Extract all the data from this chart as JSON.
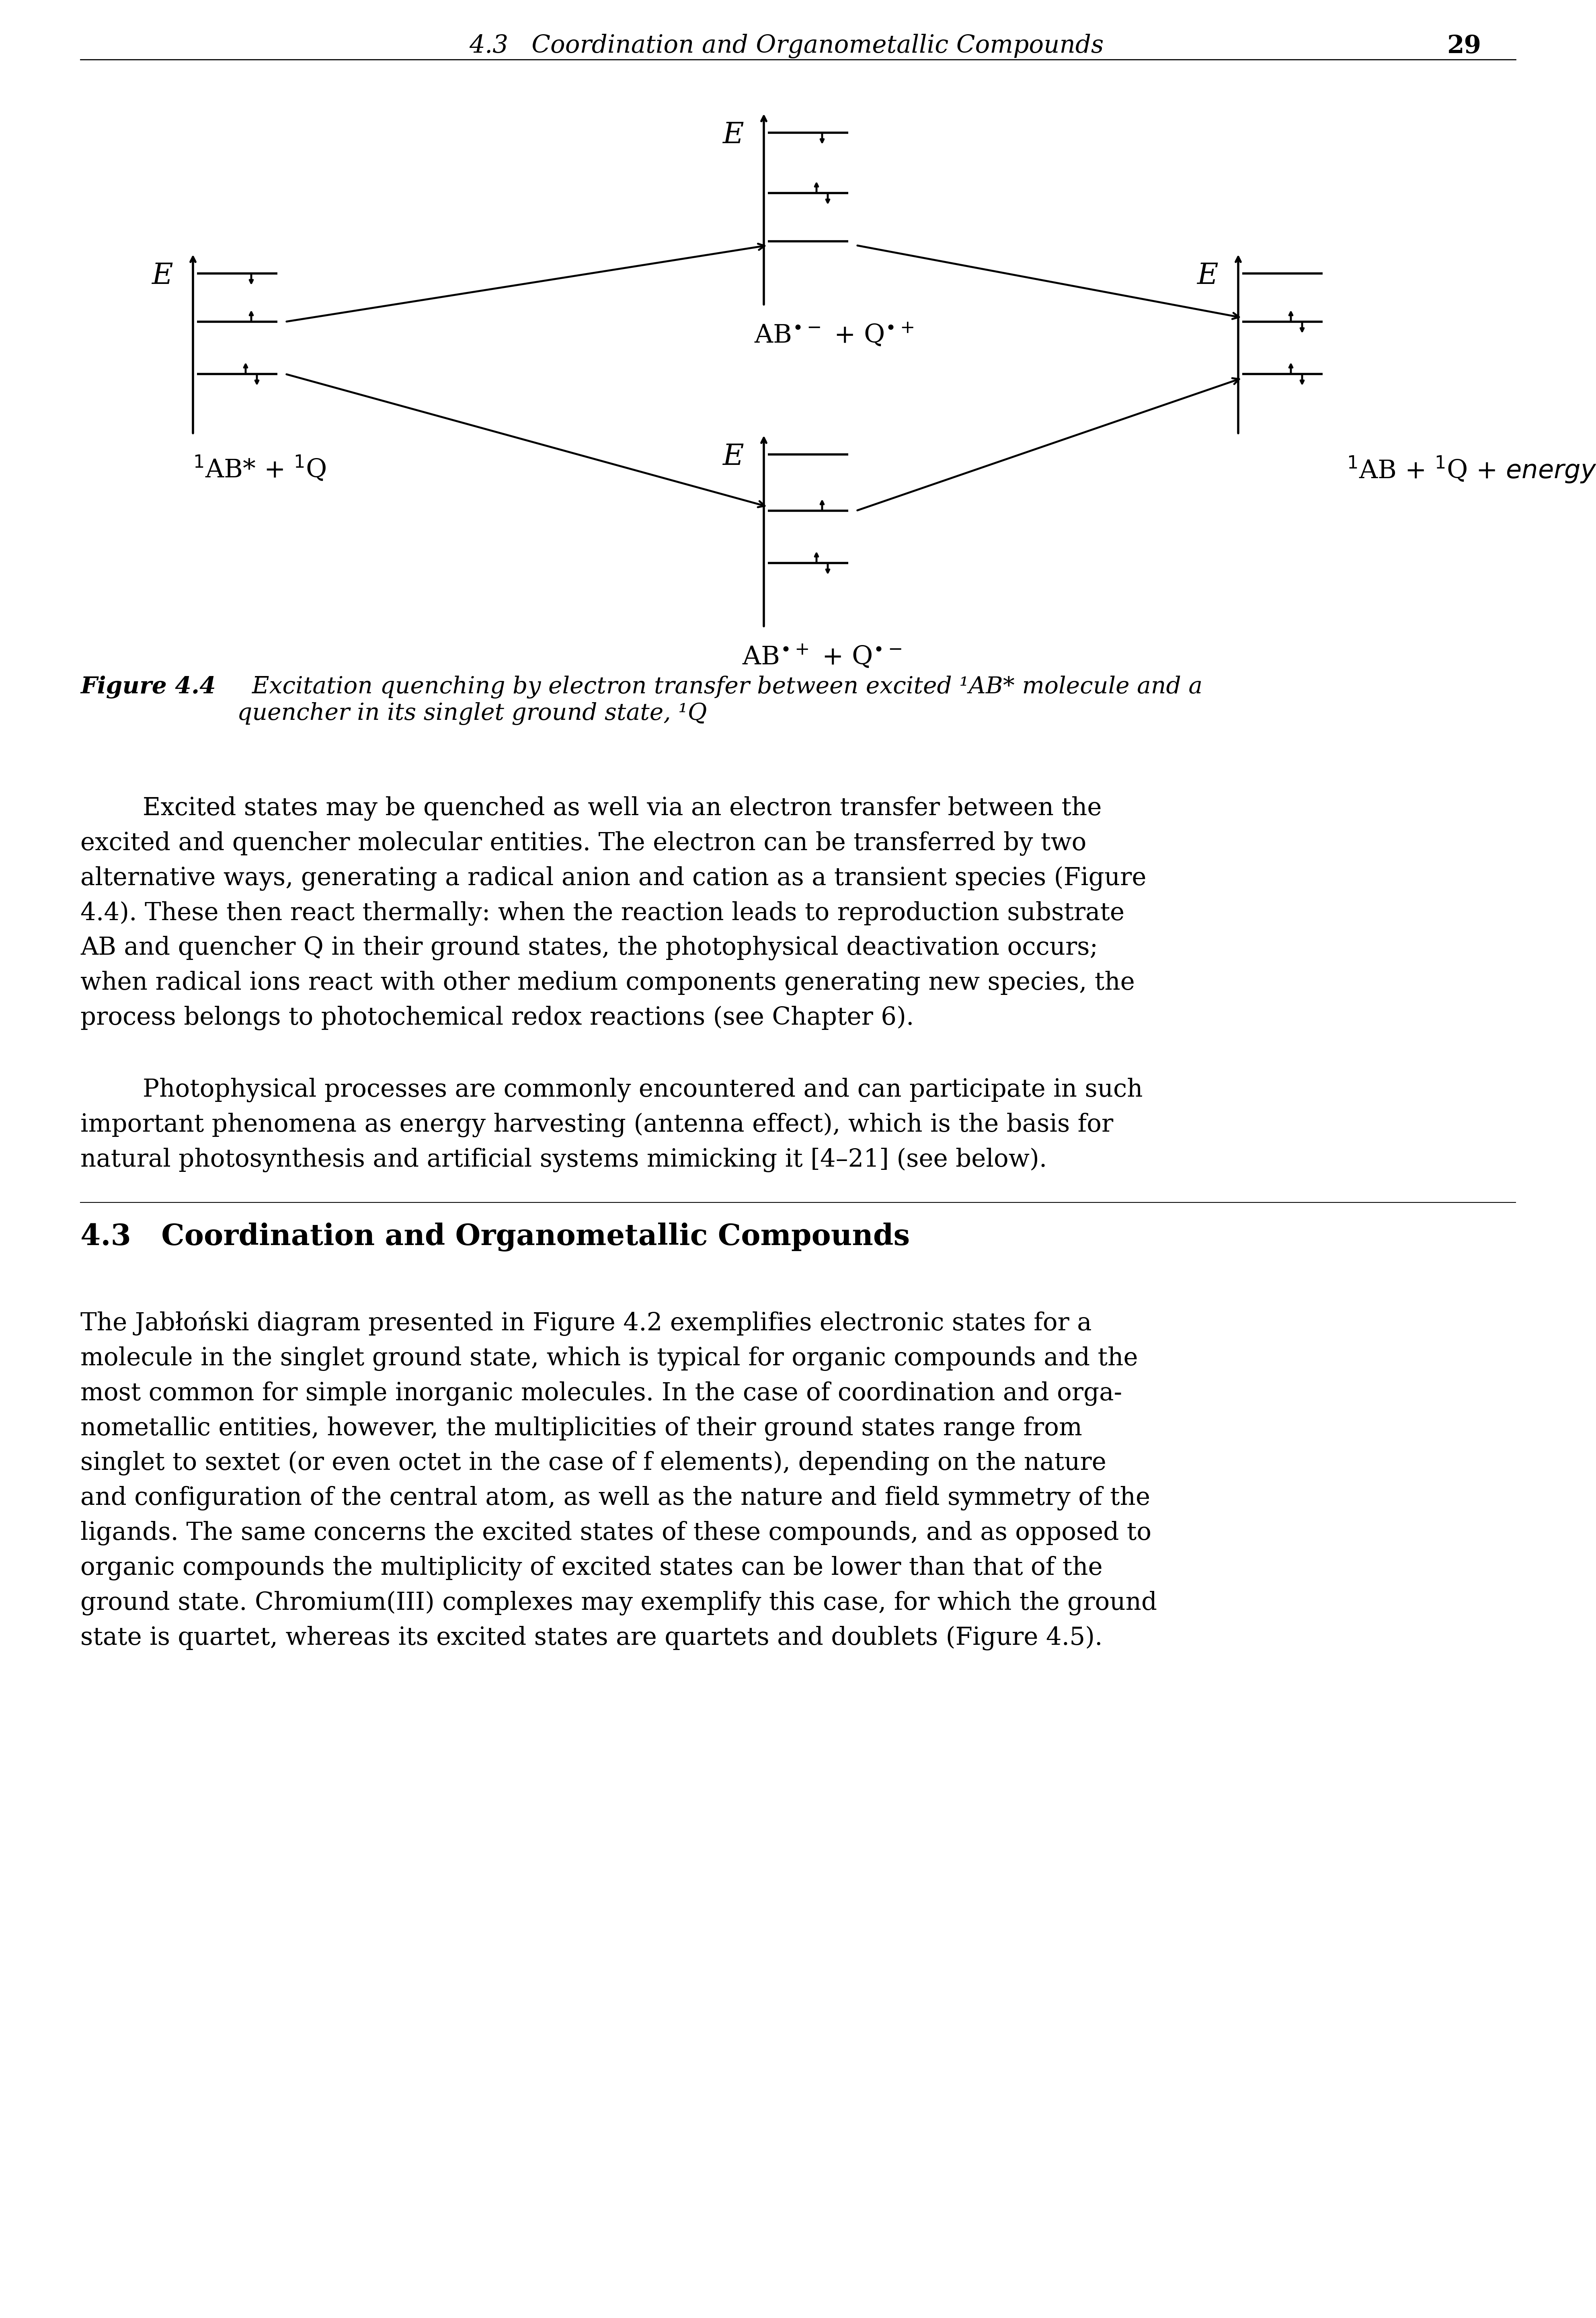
{
  "bg_color": "#ffffff",
  "header_text_italic": "4.3   Coordination and Organometallic Compounds",
  "header_num": "29",
  "figure_caption_bold": "Figure 4.4",
  "figure_caption_rest": "  Excitation quenching by electron transfer between excited ¹AB* molecule and a\nquencher in its singlet ground state, ¹Q",
  "body_text_1": "        Excited states may be quenched as well via an electron transfer between the\nexcited and quencher molecular entities. The electron can be transferred by two\nalternative ways, generating a radical anion and cation as a transient species (Figure\n4.4). These then react thermally: when the reaction leads to reproduction substrate\nAB and quencher Q in their ground states, the photophysical deactivation occurs;\nwhen radical ions react with other medium components generating new species, the\nprocess belongs to photochemical redox reactions (see Chapter 6).",
  "body_text_2": "        Photophysical processes are commonly encountered and can participate in such\nimportant phenomena as energy harvesting (antenna effect), which is the basis for\nnatural photosynthesis and artificial systems mimicking it [4–21] (see below).",
  "section_header": "4.3   Coordination and Organometallic Compounds",
  "body_text_3": "The Jabłoński diagram presented in Figure 4.2 exemplifies electronic states for a\nmolecule in the singlet ground state, which is typical for organic compounds and the\nmost common for simple inorganic molecules. In the case of coordination and orga-\nnometallic entities, however, the multiplicities of their ground states range from\nsinglet to sextet (or even octet in the case of f elements), depending on the nature\nand configuration of the central atom, as well as the nature and field symmetry of the\nligands. The same concerns the excited states of these compounds, and as opposed to\norganic compounds the multiplicity of excited states can be lower than that of the\nground state. Chromium(III) complexes may exemplify this case, for which the ground\nstate is quartet, whereas its excited states are quartets and doublets (Figure 4.5)."
}
